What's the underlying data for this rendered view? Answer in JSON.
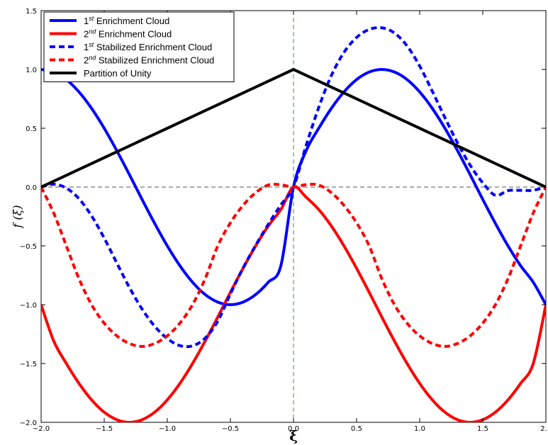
{
  "chart_data": {
    "type": "line",
    "title": "",
    "xlabel": "ξ",
    "ylabel": "f (ξ)",
    "xlim": [
      -2.0,
      2.0
    ],
    "ylim": [
      -2.0,
      1.5
    ],
    "xticks": [
      {
        "value": -2.0,
        "label": "−2.0"
      },
      {
        "value": -1.5,
        "label": "−1.5"
      },
      {
        "value": -1.0,
        "label": "−1.0"
      },
      {
        "value": -0.5,
        "label": "−0.5"
      },
      {
        "value": 0.0,
        "label": "0.0"
      },
      {
        "value": 0.5,
        "label": "0.5"
      },
      {
        "value": 1.0,
        "label": "1.0"
      },
      {
        "value": 1.5,
        "label": "1.5"
      },
      {
        "value": 2.0,
        "label": "2."
      }
    ],
    "yticks": [
      {
        "value": -2.0,
        "label": "−2.0"
      },
      {
        "value": -1.5,
        "label": "−1.5"
      },
      {
        "value": -1.0,
        "label": "−1.0"
      },
      {
        "value": -0.5,
        "label": "−0.5"
      },
      {
        "value": 0.0,
        "label": "0.0"
      },
      {
        "value": 0.5,
        "label": "0.5"
      },
      {
        "value": 1.0,
        "label": "1.0"
      },
      {
        "value": 1.5,
        "label": "1.5"
      }
    ],
    "grid": false,
    "legend_position": "top-left",
    "reference_lines": [
      {
        "orientation": "horizontal",
        "value": 0.0,
        "color": "#555555",
        "style": "dashed"
      },
      {
        "orientation": "vertical",
        "value": 0.0,
        "color": "#3a9a3a",
        "style": "dashed"
      }
    ],
    "x": [
      -2.0,
      -1.9,
      -1.8,
      -1.7,
      -1.6,
      -1.5,
      -1.4,
      -1.3,
      -1.2,
      -1.1,
      -1.0,
      -0.9,
      -0.8,
      -0.7,
      -0.6,
      -0.5,
      -0.4,
      -0.3,
      -0.2,
      -0.1,
      0.0,
      0.1,
      0.2,
      0.3,
      0.4,
      0.5,
      0.6,
      0.7,
      0.8,
      0.9,
      1.0,
      1.1,
      1.2,
      1.3,
      1.4,
      1.5,
      1.6,
      1.7,
      1.8,
      1.9,
      2.0
    ],
    "series": [
      {
        "name": "1st Enrichment Cloud",
        "name_base": "1",
        "name_sup": "st",
        "name_rest": " Enrichment Cloud",
        "color": "#0000ff",
        "style": "solid",
        "values": [
          1.0,
          0.978,
          0.914,
          0.809,
          0.669,
          0.5,
          0.309,
          0.105,
          -0.105,
          -0.309,
          -0.5,
          -0.669,
          -0.809,
          -0.914,
          -0.978,
          -1.0,
          -0.978,
          -0.914,
          -0.809,
          -0.669,
          -0.0,
          0.309,
          0.5,
          0.669,
          0.809,
          0.914,
          0.978,
          1.0,
          0.978,
          0.914,
          0.809,
          0.669,
          0.5,
          0.309,
          0.105,
          -0.105,
          -0.309,
          -0.5,
          -0.669,
          -0.809,
          -1.0
        ]
      },
      {
        "name": "2nd Enrichment Cloud",
        "name_base": "2",
        "name_sup": "nd",
        "name_rest": " Enrichment Cloud",
        "color": "#ff0000",
        "style": "solid",
        "values": [
          -1.0,
          -1.309,
          -1.5,
          -1.669,
          -1.809,
          -1.914,
          -1.978,
          -2.0,
          -1.978,
          -1.914,
          -1.809,
          -1.669,
          -1.5,
          -1.309,
          -1.105,
          -0.895,
          -0.691,
          -0.5,
          -0.331,
          -0.191,
          0.0,
          -0.086,
          -0.191,
          -0.331,
          -0.5,
          -0.691,
          -0.895,
          -1.105,
          -1.309,
          -1.5,
          -1.669,
          -1.809,
          -1.914,
          -1.978,
          -2.0,
          -1.978,
          -1.914,
          -1.809,
          -1.669,
          -1.5,
          -1.0
        ]
      },
      {
        "name": "1st Stabilized Enrichment Cloud",
        "name_base": "1",
        "name_sup": "st",
        "name_rest": " Stabilized Enrichment Cloud",
        "color": "#0000ff",
        "style": "dashed",
        "values": [
          0.0,
          0.024,
          -0.009,
          -0.099,
          -0.245,
          -0.434,
          -0.646,
          -0.854,
          -1.037,
          -1.183,
          -1.288,
          -1.348,
          -1.35,
          -1.284,
          -1.14,
          -0.908,
          -0.689,
          -0.496,
          -0.317,
          -0.151,
          0.0,
          0.353,
          0.677,
          0.948,
          1.145,
          1.272,
          1.34,
          1.354,
          1.31,
          1.2,
          1.029,
          0.815,
          0.59,
          0.375,
          0.186,
          0.036,
          -0.07,
          -0.03,
          -0.028,
          -0.027,
          0.0
        ]
      },
      {
        "name": "2nd Stabilized Enrichment Cloud",
        "name_base": "2",
        "name_sup": "nd",
        "name_rest": " Stabilized Enrichment Cloud",
        "color": "#ff0000",
        "style": "dashed",
        "values": [
          0.0,
          -0.221,
          -0.5,
          -0.779,
          -1.0,
          -1.157,
          -1.265,
          -1.33,
          -1.355,
          -1.33,
          -1.265,
          -1.157,
          -1.0,
          -0.779,
          -0.5,
          -0.304,
          -0.156,
          -0.048,
          0.017,
          0.02,
          0.0,
          0.02,
          0.017,
          -0.048,
          -0.156,
          -0.304,
          -0.5,
          -0.779,
          -1.0,
          -1.157,
          -1.265,
          -1.33,
          -1.355,
          -1.33,
          -1.265,
          -1.157,
          -1.0,
          -0.779,
          -0.5,
          -0.221,
          0.0
        ]
      },
      {
        "name": "Partition of Unity",
        "name_base": "Partition of Unity",
        "name_sup": "",
        "name_rest": "",
        "color": "#000000",
        "style": "solid",
        "values": [
          0.0,
          0.05,
          0.1,
          0.15,
          0.2,
          0.25,
          0.3,
          0.35,
          0.4,
          0.45,
          0.5,
          0.55,
          0.6,
          0.65,
          0.7,
          0.75,
          0.8,
          0.85,
          0.9,
          0.95,
          1.0,
          0.95,
          0.9,
          0.85,
          0.8,
          0.75,
          0.7,
          0.65,
          0.6,
          0.55,
          0.5,
          0.45,
          0.4,
          0.35,
          0.3,
          0.25,
          0.2,
          0.15,
          0.1,
          0.05,
          0.0
        ]
      }
    ]
  }
}
